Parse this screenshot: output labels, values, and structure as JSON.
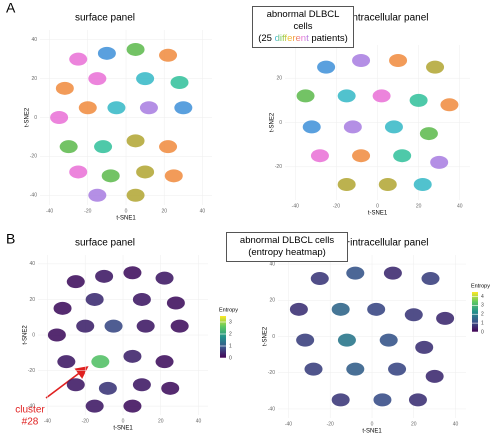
{
  "panel_labels": [
    "A",
    "B"
  ],
  "box_a": {
    "line1": "abnormal DLBCL cells",
    "line2_parts": [
      "(25",
      "different",
      "patients)"
    ]
  },
  "box_b": {
    "line1": "abnormal DLBCL cells",
    "line2": "(entropy heatmap)"
  },
  "chart_data": [
    {
      "type": "scatter",
      "title": "surface panel",
      "xlabel": "t-SNE1",
      "ylabel": "t-SNE2",
      "xlim": [
        -45,
        45
      ],
      "ylim": [
        -45,
        45
      ],
      "xticks": [
        -40,
        -20,
        0,
        20,
        40
      ],
      "yticks": [
        -40,
        -20,
        0,
        20,
        40
      ],
      "x": [
        -25,
        -10,
        5,
        22,
        -32,
        -15,
        10,
        28,
        -35,
        -20,
        -5,
        12,
        30,
        -30,
        -12,
        5,
        22,
        -25,
        -8,
        10,
        25,
        -15,
        5
      ],
      "y": [
        30,
        33,
        35,
        32,
        15,
        20,
        20,
        18,
        0,
        5,
        5,
        5,
        5,
        -15,
        -15,
        -12,
        -15,
        -28,
        -30,
        -28,
        -30,
        -40,
        -40
      ],
      "colors": [
        "#e96fd6",
        "#3d8fd8",
        "#5bb84a",
        "#f08a3c",
        "#f08a3c",
        "#e96fd6",
        "#33b7c6",
        "#2fbf9a",
        "#e96fd6",
        "#f08a3c",
        "#33b7c6",
        "#a77be0",
        "#3d8fd8",
        "#5bb84a",
        "#2fbf9a",
        "#b0a530",
        "#f08a3c",
        "#e96fd6",
        "#5bb84a",
        "#b0a530",
        "#f08a3c",
        "#a77be0",
        "#b0a530"
      ]
    },
    {
      "type": "scatter",
      "title": "surface+intracellular panel",
      "xlabel": "t-SNE1",
      "ylabel": "t-SNE2",
      "xlim": [
        -45,
        45
      ],
      "ylim": [
        -35,
        35
      ],
      "xticks": [
        -40,
        -20,
        0,
        20,
        40
      ],
      "yticks": [
        -20,
        0,
        20
      ],
      "x": [
        -25,
        -8,
        10,
        28,
        -35,
        -15,
        2,
        20,
        35,
        -32,
        -12,
        8,
        25,
        -28,
        -8,
        12,
        30,
        -15,
        5,
        22
      ],
      "y": [
        25,
        28,
        28,
        25,
        12,
        12,
        12,
        10,
        8,
        -2,
        -2,
        -2,
        -5,
        -15,
        -15,
        -15,
        -18,
        -28,
        -28,
        -28
      ],
      "colors": [
        "#3d8fd8",
        "#a77be0",
        "#f08a3c",
        "#b0a530",
        "#5bb84a",
        "#33b7c6",
        "#e96fd6",
        "#2fbf9a",
        "#f08a3c",
        "#3d8fd8",
        "#a77be0",
        "#33b7c6",
        "#5bb84a",
        "#e96fd6",
        "#f08a3c",
        "#2fbf9a",
        "#a77be0",
        "#b0a530",
        "#b0a530",
        "#33b7c6"
      ]
    },
    {
      "type": "entropy",
      "title": "surface panel",
      "xlabel": "t-SNE1",
      "ylabel": "t-SNE2",
      "xlim": [
        -45,
        45
      ],
      "ylim": [
        -45,
        45
      ],
      "xticks": [
        -40,
        -20,
        0,
        20,
        40
      ],
      "yticks": [
        -40,
        -20,
        0,
        20,
        40
      ],
      "x": [
        -25,
        -10,
        5,
        22,
        -32,
        -15,
        10,
        28,
        -35,
        -20,
        -5,
        12,
        30,
        -30,
        -12,
        5,
        22,
        -25,
        -8,
        10,
        25,
        -15,
        5
      ],
      "y": [
        30,
        33,
        35,
        32,
        15,
        20,
        20,
        18,
        0,
        5,
        5,
        5,
        5,
        -15,
        -15,
        -12,
        -15,
        -28,
        -30,
        -28,
        -30,
        -40,
        -40
      ],
      "entropy": [
        0.2,
        0.3,
        0.2,
        0.3,
        0.2,
        0.5,
        0.3,
        0.2,
        0.2,
        0.4,
        0.8,
        0.3,
        0.2,
        0.3,
        2.5,
        0.4,
        0.2,
        0.3,
        0.6,
        0.3,
        0.2,
        0.3,
        0.2
      ],
      "colorbar": {
        "label": "Entropy",
        "lim": [
          0,
          3.5
        ],
        "ticks": [
          0,
          1,
          2,
          3
        ]
      },
      "annotation": [
        "cluster",
        "#28"
      ]
    },
    {
      "type": "entropy",
      "title": "surface+intracellular panel",
      "xlabel": "t-SNE1",
      "ylabel": "t-SNE2",
      "xlim": [
        -45,
        45
      ],
      "ylim": [
        -45,
        45
      ],
      "xticks": [
        -40,
        -20,
        0,
        20,
        40
      ],
      "yticks": [
        -40,
        -20,
        0,
        20,
        40
      ],
      "x": [
        -25,
        -8,
        10,
        28,
        -35,
        -15,
        2,
        20,
        35,
        -32,
        -12,
        8,
        25,
        -28,
        -8,
        12,
        30,
        -15,
        5,
        22
      ],
      "y": [
        32,
        35,
        35,
        32,
        15,
        15,
        15,
        12,
        10,
        -2,
        -2,
        -2,
        -6,
        -18,
        -18,
        -18,
        -22,
        -35,
        -35,
        -35
      ],
      "entropy": [
        0.8,
        1.2,
        0.6,
        0.9,
        0.7,
        1.5,
        1.0,
        0.8,
        0.6,
        0.9,
        1.8,
        1.2,
        0.7,
        0.9,
        1.4,
        1.0,
        0.6,
        0.8,
        1.1,
        0.7
      ],
      "colorbar": {
        "label": "Entropy",
        "lim": [
          0,
          4.5
        ],
        "ticks": [
          0,
          1,
          2,
          3,
          4
        ]
      }
    }
  ]
}
